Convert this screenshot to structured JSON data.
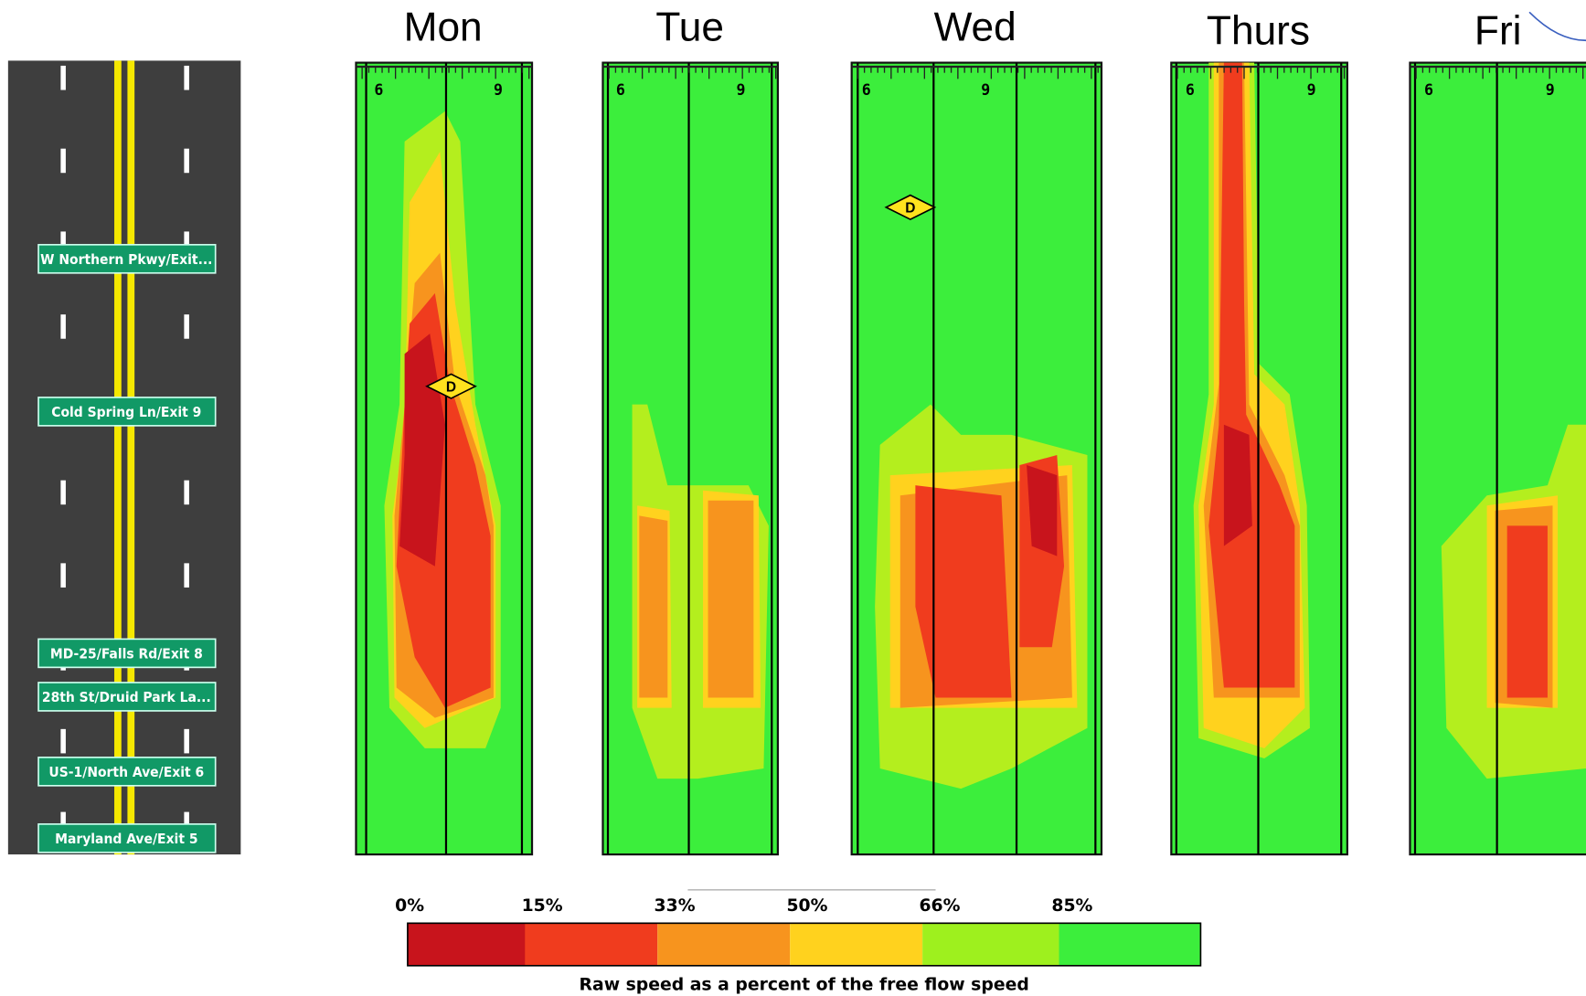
{
  "days": [
    {
      "label": "Mon",
      "ticks": [
        "6",
        "9"
      ],
      "marker": "D"
    },
    {
      "label": "Tue",
      "ticks": [
        "6",
        "9"
      ]
    },
    {
      "label": "Wed",
      "ticks": [
        "6",
        "9"
      ],
      "marker": "D"
    },
    {
      "label": "Thurs",
      "ticks": [
        "6",
        "9"
      ]
    },
    {
      "label": "Fri",
      "ticks": [
        "6",
        "9"
      ]
    }
  ],
  "exits": [
    "W Northern Pkwy/Exit...",
    "Cold Spring Ln/Exit 9",
    "MD-25/Falls Rd/Exit 8",
    "28th St/Druid Park La...",
    "US-1/North Ave/Exit 6",
    "Maryland Ave/Exit 5"
  ],
  "legend": {
    "ticks": [
      "0%",
      "15%",
      "33%",
      "50%",
      "66%",
      "85%"
    ],
    "caption": "Raw speed as a percent of the free flow speed"
  }
}
